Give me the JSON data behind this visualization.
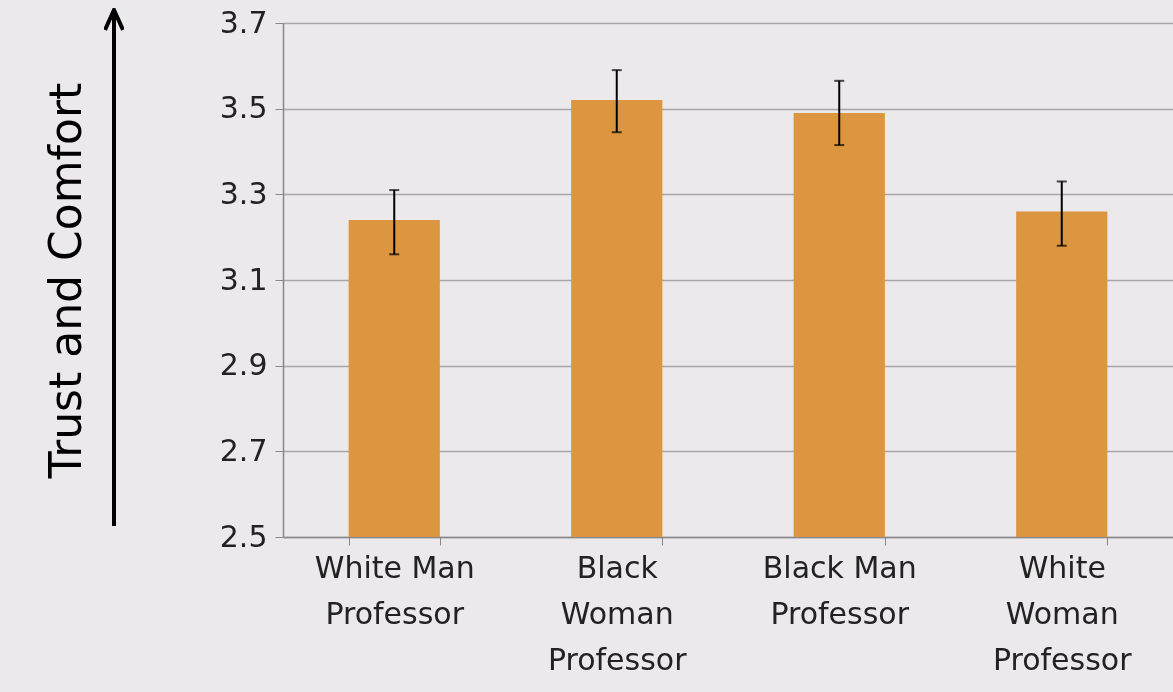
{
  "chart_data": {
    "type": "bar",
    "ylabel": "Trust and Comfort",
    "categories": [
      "White Man Professor",
      "Black Woman Professor",
      "Black Man Professor",
      "White Woman Professor"
    ],
    "values": [
      3.24,
      3.52,
      3.49,
      3.26
    ],
    "errors": [
      [
        3.16,
        3.31
      ],
      [
        3.445,
        3.59
      ],
      [
        3.415,
        3.565
      ],
      [
        3.18,
        3.33
      ]
    ],
    "color": "#dd9640",
    "ylim": [
      2.5,
      3.7
    ],
    "yticks": [
      2.5,
      2.7,
      2.9,
      3.1,
      3.3,
      3.5,
      3.7
    ],
    "grid": "y"
  }
}
